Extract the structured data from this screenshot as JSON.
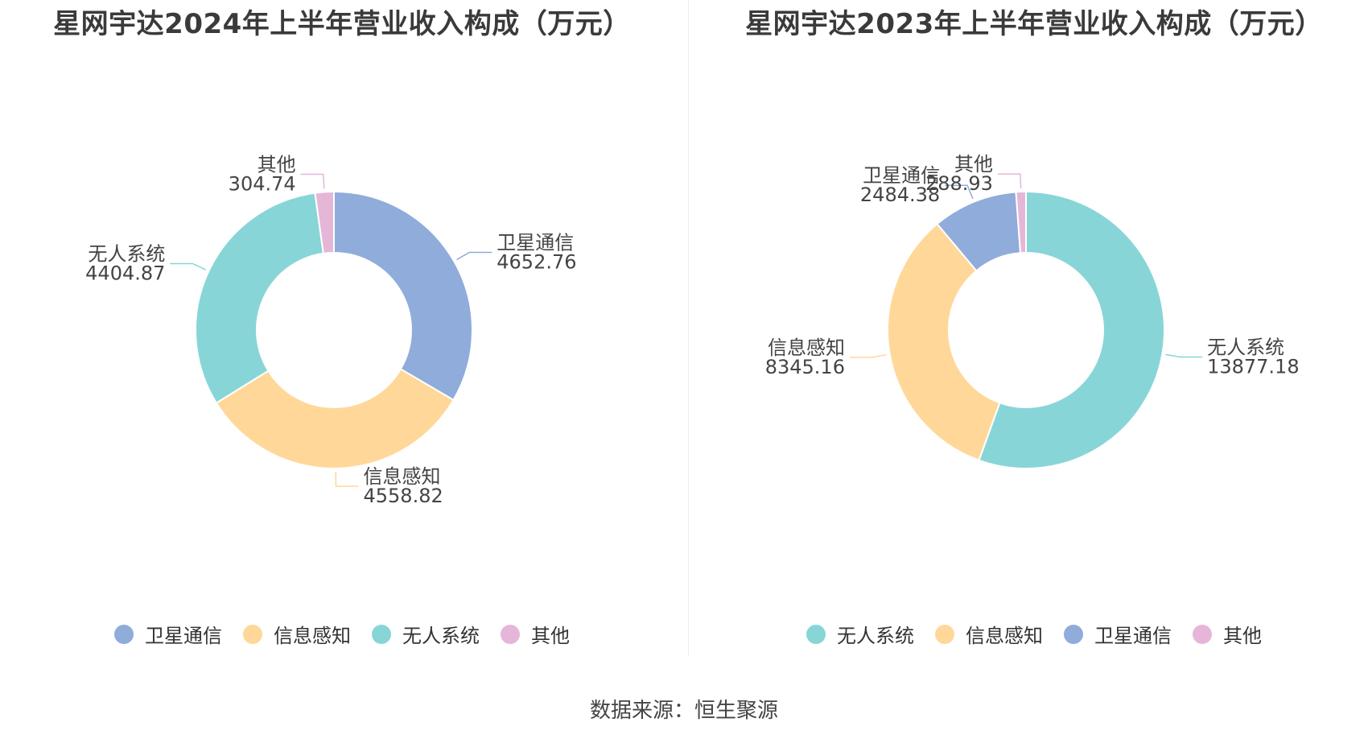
{
  "source_text": "数据来源：恒生聚源",
  "colors": {
    "卫星通信": "#8facdb",
    "信息感知": "#ffd899",
    "无人系统": "#88d5d8",
    "其他": "#e6b6d8"
  },
  "chart_data": [
    {
      "type": "pie",
      "title": "星网宇达2024年上半年营业收入构成（万元）",
      "donut": true,
      "legend_position": "bottom",
      "slices": [
        {
          "name": "卫星通信",
          "value": 4652.76,
          "value_label": "4652.76"
        },
        {
          "name": "信息感知",
          "value": 4558.82,
          "value_label": "4558.82"
        },
        {
          "name": "无人系统",
          "value": 4404.87,
          "value_label": "4404.87"
        },
        {
          "name": "其他",
          "value": 304.74,
          "value_label": "304.74"
        }
      ]
    },
    {
      "type": "pie",
      "title": "星网宇达2023年上半年营业收入构成（万元）",
      "donut": true,
      "legend_position": "bottom",
      "slices": [
        {
          "name": "无人系统",
          "value": 13877.18,
          "value_label": "13877.18"
        },
        {
          "name": "信息感知",
          "value": 8345.16,
          "value_label": "8345.16"
        },
        {
          "name": "卫星通信",
          "value": 2484.38,
          "value_label": "2484.38"
        },
        {
          "name": "其他",
          "value": 288.93,
          "value_label": "288.93"
        }
      ]
    }
  ]
}
